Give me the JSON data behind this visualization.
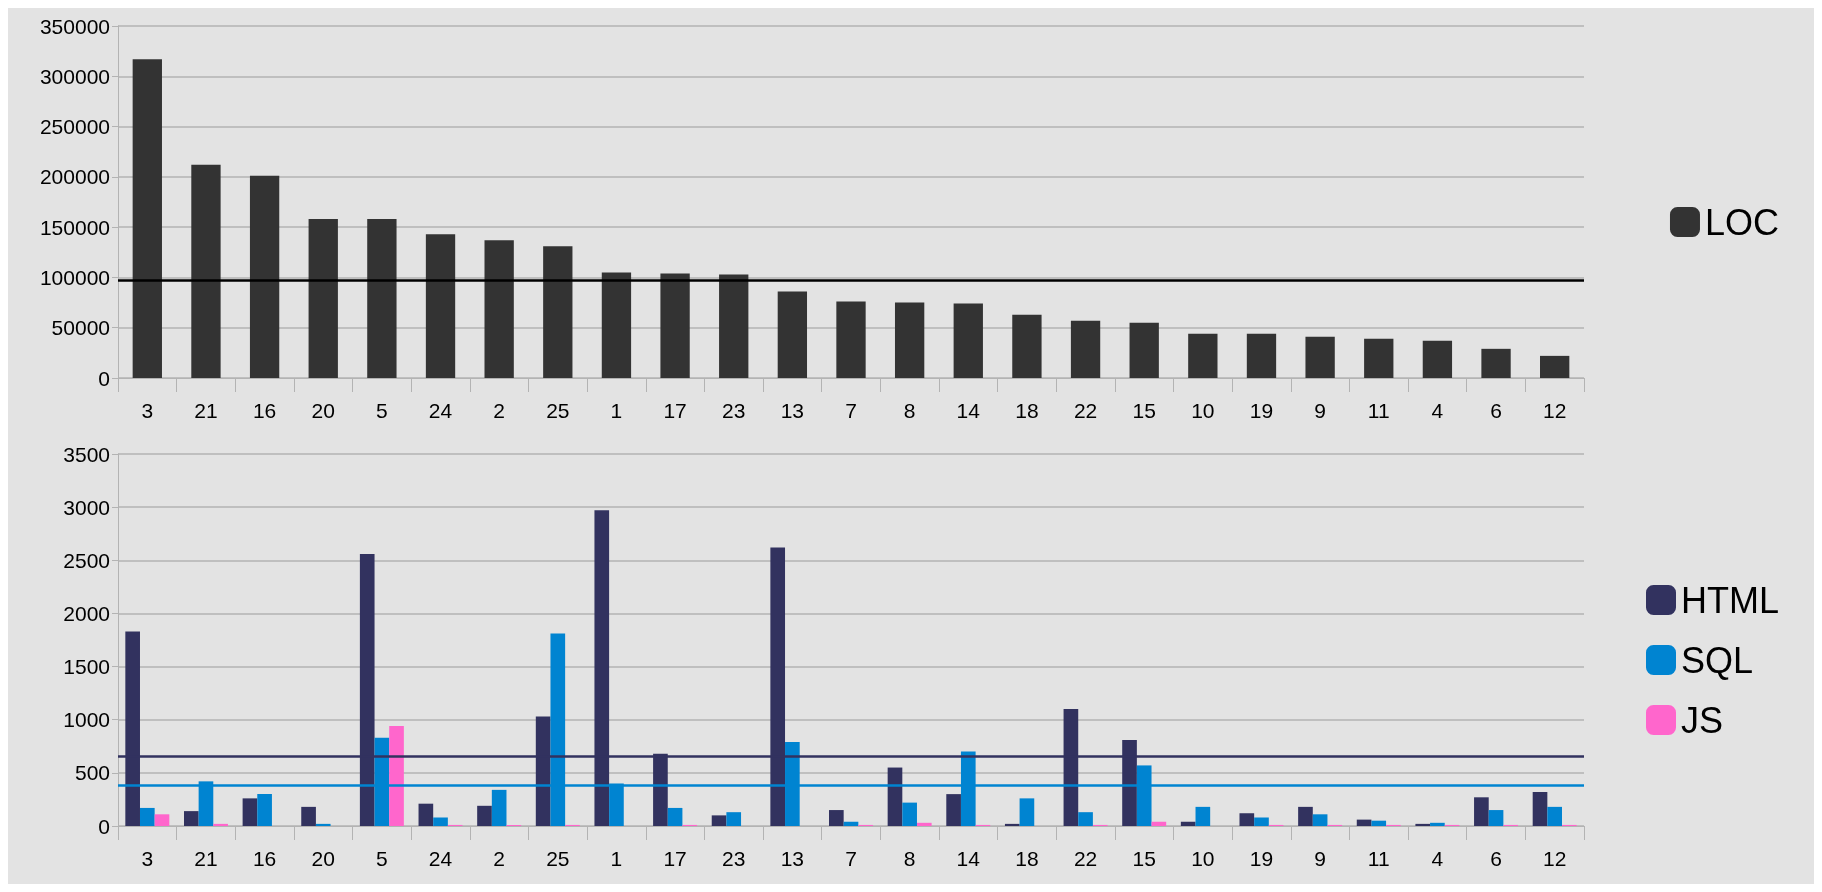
{
  "chart_data": [
    {
      "type": "bar",
      "categories": [
        "3",
        "21",
        "16",
        "20",
        "5",
        "24",
        "2",
        "25",
        "1",
        "17",
        "23",
        "13",
        "7",
        "8",
        "14",
        "18",
        "22",
        "15",
        "10",
        "19",
        "9",
        "11",
        "4",
        "6",
        "12"
      ],
      "series": [
        {
          "name": "LOC",
          "color": "#333333",
          "values": [
            317000,
            212000,
            201000,
            158000,
            158000,
            143000,
            137000,
            131000,
            105000,
            104000,
            103000,
            86000,
            76000,
            75000,
            74000,
            63000,
            57000,
            55000,
            44000,
            44000,
            41000,
            39000,
            37000,
            29000,
            22000
          ]
        }
      ],
      "ylim": [
        0,
        350000
      ],
      "yticks": [
        0,
        50000,
        100000,
        150000,
        200000,
        250000,
        300000,
        350000
      ],
      "grid": "y",
      "legend": "right",
      "ref_lines": [
        {
          "axis": "y",
          "value": 97000,
          "color": "#000000"
        }
      ]
    },
    {
      "type": "bar",
      "categories": [
        "3",
        "21",
        "16",
        "20",
        "5",
        "24",
        "2",
        "25",
        "1",
        "17",
        "23",
        "13",
        "7",
        "8",
        "14",
        "18",
        "22",
        "15",
        "10",
        "19",
        "9",
        "11",
        "4",
        "6",
        "12"
      ],
      "series": [
        {
          "name": "HTML",
          "color": "#32325f",
          "values": [
            1830,
            140,
            260,
            180,
            2560,
            210,
            190,
            1030,
            2970,
            680,
            100,
            2620,
            150,
            550,
            300,
            20,
            1100,
            810,
            40,
            120,
            180,
            60,
            20,
            270,
            320
          ]
        },
        {
          "name": "SQL",
          "color": "#0084d1",
          "values": [
            170,
            420,
            300,
            20,
            830,
            80,
            340,
            1810,
            400,
            170,
            130,
            790,
            40,
            220,
            700,
            260,
            130,
            570,
            180,
            80,
            110,
            50,
            30,
            150,
            180
          ]
        },
        {
          "name": "JS",
          "color": "#ff66cc",
          "values": [
            110,
            20,
            0,
            0,
            940,
            10,
            10,
            10,
            0,
            10,
            0,
            0,
            10,
            30,
            10,
            0,
            10,
            40,
            0,
            10,
            10,
            10,
            10,
            10,
            10
          ]
        }
      ],
      "ylim": [
        0,
        3500
      ],
      "yticks": [
        0,
        500,
        1000,
        1500,
        2000,
        2500,
        3000,
        3500
      ],
      "grid": "y",
      "legend": "right",
      "ref_lines": [
        {
          "axis": "y",
          "value": 653,
          "color": "#32325f"
        },
        {
          "axis": "y",
          "value": 387,
          "color": "#0084d1"
        }
      ]
    }
  ]
}
